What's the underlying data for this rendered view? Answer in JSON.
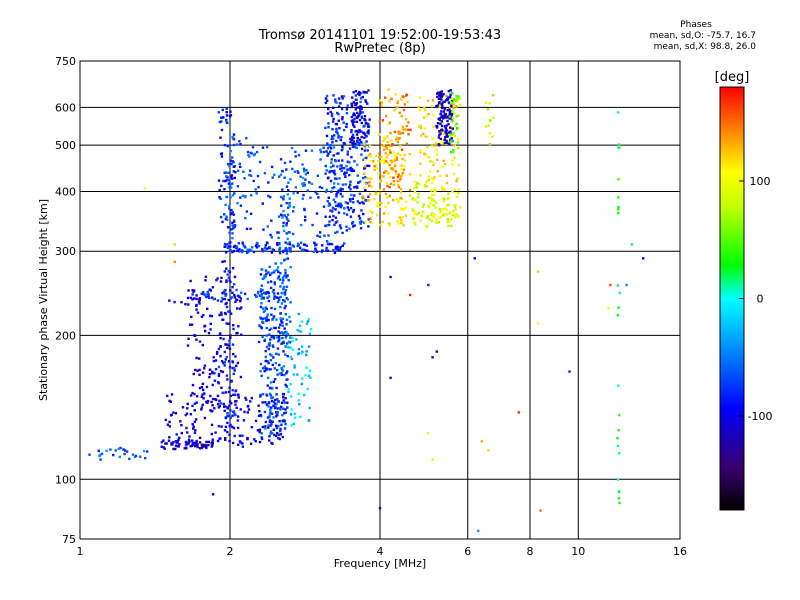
{
  "header": {
    "title": "Tromsø 20141101 19:52:00-19:53:43",
    "subtitle": "RwPretec (8p)"
  },
  "phase_info": {
    "label": "Phases",
    "line_o": "mean, sd,O: -75.7, 16.7",
    "line_x": "mean, sd,X:  98.8, 26.0"
  },
  "colorbar": {
    "title": "[deg]",
    "range": [
      -180,
      180
    ],
    "ticks": [
      {
        "value": 100,
        "label": "100"
      },
      {
        "value": 0,
        "label": "0"
      },
      {
        "value": -100,
        "label": "-100"
      }
    ]
  },
  "chart_data": {
    "type": "scatter",
    "title": "Tromsø 20141101 19:52:00-19:53:43",
    "subtitle": "RwPretec (8p)",
    "xlabel": "Frequency [MHz]",
    "ylabel": "Stationary phase Virtual Height [km]",
    "xscale": "log",
    "yscale": "log",
    "xlim": [
      1,
      16
    ],
    "ylim": [
      75,
      750
    ],
    "xticks": [
      {
        "value": 1,
        "label": "1"
      },
      {
        "value": 2,
        "label": "2"
      },
      {
        "value": 4,
        "label": "4"
      },
      {
        "value": 6,
        "label": "6"
      },
      {
        "value": 8,
        "label": "8"
      },
      {
        "value": 10,
        "label": "10"
      },
      {
        "value": 16,
        "label": "16"
      }
    ],
    "yticks": [
      {
        "value": 75,
        "label": "75"
      },
      {
        "value": 100,
        "label": "100"
      },
      {
        "value": 200,
        "label": "200"
      },
      {
        "value": 300,
        "label": "300"
      },
      {
        "value": 400,
        "label": "400"
      },
      {
        "value": 500,
        "label": "500"
      },
      {
        "value": 600,
        "label": "600"
      },
      {
        "value": 750,
        "label": "750"
      }
    ],
    "grid": true,
    "color_variable": "phase [deg]",
    "color_range": [
      -180,
      180
    ],
    "trace_groups": [
      {
        "f0": 1.0,
        "f1": 1.45,
        "h0": 110,
        "h1": 116,
        "phase": -60,
        "jitter": 0.05,
        "n": 25
      },
      {
        "f0": 1.45,
        "f1": 1.85,
        "h0": 116,
        "h1": 120,
        "phase": -110,
        "jitter": 0.05,
        "n": 60
      },
      {
        "f0": 1.5,
        "f1": 2.6,
        "h0": 118,
        "h1": 150,
        "phase": -105,
        "jitter": 0.12,
        "n": 170
      },
      {
        "f0": 1.65,
        "f1": 2.1,
        "h0": 140,
        "h1": 270,
        "phase": -105,
        "jitter": 0.09,
        "n": 170
      },
      {
        "f0": 1.9,
        "f1": 2.05,
        "h0": 120,
        "h1": 600,
        "phase": -85,
        "jitter": 0.04,
        "n": 140
      },
      {
        "f0": 2.3,
        "f1": 2.6,
        "h0": 125,
        "h1": 280,
        "phase": -70,
        "jitter": 0.09,
        "n": 260
      },
      {
        "f0": 2.5,
        "f1": 2.65,
        "h0": 180,
        "h1": 460,
        "phase": -60,
        "jitter": 0.05,
        "n": 80
      },
      {
        "f0": 2.6,
        "f1": 2.9,
        "h0": 130,
        "h1": 220,
        "phase": -20,
        "jitter": 0.06,
        "n": 60
      },
      {
        "f0": 1.5,
        "f1": 1.75,
        "h0": 228,
        "h1": 240,
        "phase": -100,
        "jitter": 0.02,
        "n": 14
      },
      {
        "f0": 1.75,
        "f1": 2.5,
        "h0": 236,
        "h1": 250,
        "phase": -70,
        "jitter": 0.015,
        "n": 40
      },
      {
        "f0": 1.95,
        "f1": 3.4,
        "h0": 298,
        "h1": 312,
        "phase": -80,
        "jitter": 0.02,
        "n": 100
      },
      {
        "f0": 1.95,
        "f1": 2.2,
        "h0": 300,
        "h1": 520,
        "phase": -70,
        "jitter": 0.05,
        "n": 60
      },
      {
        "f0": 2.2,
        "f1": 3.4,
        "h0": 300,
        "h1": 500,
        "phase": -70,
        "jitter": 0.06,
        "n": 110
      },
      {
        "f0": 2.6,
        "f1": 3.6,
        "h0": 360,
        "h1": 500,
        "phase": -60,
        "jitter": 0.06,
        "n": 60
      },
      {
        "f0": 3.1,
        "f1": 3.8,
        "h0": 330,
        "h1": 640,
        "phase": -80,
        "jitter": 0.06,
        "n": 260
      },
      {
        "f0": 3.5,
        "f1": 3.8,
        "h0": 500,
        "h1": 650,
        "phase": -100,
        "jitter": 0.03,
        "n": 80
      },
      {
        "f0": 3.7,
        "f1": 4.5,
        "h0": 340,
        "h1": 520,
        "phase": 120,
        "jitter": 0.06,
        "n": 130
      },
      {
        "f0": 4.0,
        "f1": 4.6,
        "h0": 400,
        "h1": 650,
        "phase": 140,
        "jitter": 0.06,
        "n": 100
      },
      {
        "f0": 4.6,
        "f1": 5.8,
        "h0": 340,
        "h1": 420,
        "phase": 90,
        "jitter": 0.05,
        "n": 120
      },
      {
        "f0": 4.8,
        "f1": 5.8,
        "h0": 420,
        "h1": 640,
        "phase": 110,
        "jitter": 0.06,
        "n": 100
      },
      {
        "f0": 5.2,
        "f1": 5.6,
        "h0": 500,
        "h1": 650,
        "phase": -110,
        "jitter": 0.03,
        "n": 120
      },
      {
        "f0": 5.5,
        "f1": 5.8,
        "h0": 480,
        "h1": 650,
        "phase": 50,
        "jitter": 0.03,
        "n": 30
      },
      {
        "f0": 6.5,
        "f1": 6.8,
        "h0": 500,
        "h1": 640,
        "phase": 80,
        "jitter": 0.04,
        "n": 12
      },
      {
        "f0": 12.0,
        "f1": 12.1,
        "h0": 85,
        "h1": 610,
        "phase": 20,
        "jitter": 0.03,
        "n": 25
      }
    ],
    "sparse_points": [
      {
        "f": 1.35,
        "h": 406,
        "phase": 110
      },
      {
        "f": 1.55,
        "h": 310,
        "phase": 120
      },
      {
        "f": 1.55,
        "h": 285,
        "phase": 140
      },
      {
        "f": 1.85,
        "h": 93,
        "phase": -110
      },
      {
        "f": 4.0,
        "h": 87,
        "phase": -110
      },
      {
        "f": 4.2,
        "h": 265,
        "phase": -100
      },
      {
        "f": 4.2,
        "h": 163,
        "phase": -120
      },
      {
        "f": 4.6,
        "h": 243,
        "phase": 170
      },
      {
        "f": 5.0,
        "h": 255,
        "phase": -80
      },
      {
        "f": 5.0,
        "h": 125,
        "phase": 110
      },
      {
        "f": 5.1,
        "h": 180,
        "phase": -110
      },
      {
        "f": 5.1,
        "h": 110,
        "phase": 110
      },
      {
        "f": 5.2,
        "h": 185,
        "phase": -120
      },
      {
        "f": 6.2,
        "h": 290,
        "phase": -100
      },
      {
        "f": 6.3,
        "h": 78,
        "phase": -40
      },
      {
        "f": 6.4,
        "h": 120,
        "phase": 130
      },
      {
        "f": 6.6,
        "h": 115,
        "phase": 120
      },
      {
        "f": 7.6,
        "h": 138,
        "phase": 170
      },
      {
        "f": 8.3,
        "h": 272,
        "phase": 120
      },
      {
        "f": 8.3,
        "h": 212,
        "phase": 110
      },
      {
        "f": 8.4,
        "h": 86,
        "phase": 150
      },
      {
        "f": 9.6,
        "h": 168,
        "phase": -80
      },
      {
        "f": 11.5,
        "h": 228,
        "phase": 110
      },
      {
        "f": 11.6,
        "h": 255,
        "phase": 160
      },
      {
        "f": 12.5,
        "h": 255,
        "phase": -40
      },
      {
        "f": 13.5,
        "h": 290,
        "phase": -100
      },
      {
        "f": 12.8,
        "h": 310,
        "phase": -10
      }
    ]
  }
}
